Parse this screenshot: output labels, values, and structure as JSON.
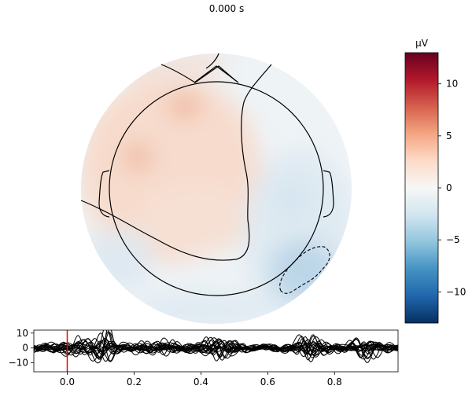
{
  "figure": {
    "time_label": "0.000 s"
  },
  "colorbar": {
    "unit": "µV",
    "range": [
      -13,
      13
    ],
    "ticks": [
      10,
      5,
      0,
      -5,
      -10
    ],
    "tick_labels": [
      "10",
      "5",
      "0",
      "−5",
      "−10"
    ],
    "colormap": "RdBu_r",
    "colormap_stops": [
      "#053061",
      "#2166ac",
      "#4393c3",
      "#92c5de",
      "#d1e5f0",
      "#f7f7f7",
      "#fddbc7",
      "#f4a582",
      "#d6604d",
      "#b2182b",
      "#67001f"
    ]
  },
  "topomap": {
    "colors": {
      "background": "#eef3f6",
      "positive_soft": "#f7dccd",
      "positive_mid": "#f0b9a0",
      "negative_soft": "#d6e6f0",
      "negative_mid": "#b9d4e7"
    },
    "outline_color": "#000000",
    "positive_region": "frontal-left and central",
    "negative_region": "right-posterior"
  },
  "chart_data": {
    "type": "line",
    "title": "0.000 s",
    "x_ticks": [
      0.0,
      0.2,
      0.4,
      0.6,
      0.8
    ],
    "x_tick_labels": [
      "0.0",
      "0.2",
      "0.4",
      "0.6",
      "0.8"
    ],
    "y_ticks": [
      10,
      0,
      -10
    ],
    "y_tick_labels": [
      "10",
      "0",
      "−10"
    ],
    "xlim": [
      -0.1,
      0.99
    ],
    "ylim": [
      -16,
      12
    ],
    "cursor_time": 0.0,
    "cursor_color": "#ff0000",
    "line_color": "#000000",
    "trace_count": 20
  }
}
